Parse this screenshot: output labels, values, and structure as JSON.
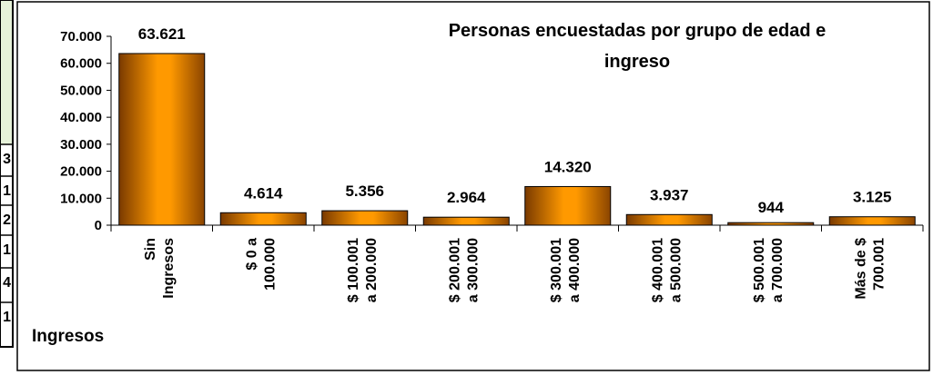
{
  "table_fragment": {
    "cells": [
      "3",
      "1",
      "2",
      "1",
      "4",
      "1"
    ]
  },
  "chart_data": {
    "type": "bar",
    "title": "Personas encuestadas  por grupo de edad e ingreso",
    "x_label": "Ingresos",
    "categories": [
      "Sin Ingresos",
      "$ 0 a 100.000",
      "$ 100.001 a 200.000",
      "$ 200.001 a 300.000",
      "$ 300.001 a 400.000",
      "$ 400.001 a 500.000",
      "$ 500.001 a 700.000",
      "Más de $ 700.001"
    ],
    "values": [
      63621,
      4614,
      5356,
      2964,
      14320,
      3937,
      944,
      3125
    ],
    "value_labels": [
      "63.621",
      "4.614",
      "5.356",
      "2.964",
      "14.320",
      "3.937",
      "944",
      "3.125"
    ],
    "color": "#ff9900",
    "ylim": [
      0,
      70000
    ],
    "yticks": [
      0,
      {
        "value": 10000,
        "label": "10.000"
      },
      {
        "value": 20000,
        "label": "20.000"
      },
      {
        "value": 30000,
        "label": "30.000"
      },
      {
        "value": 40000,
        "label": "40.000"
      },
      {
        "value": 50000,
        "label": "50.000"
      },
      {
        "value": 60000,
        "label": "60.000"
      },
      {
        "value": 70000,
        "label": "70.000"
      }
    ],
    "grid": false
  }
}
